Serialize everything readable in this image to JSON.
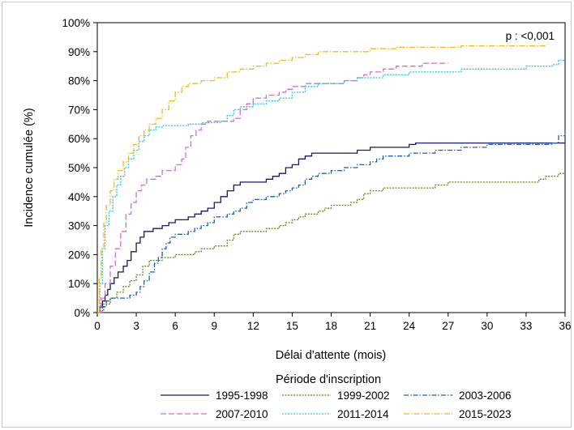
{
  "chart_data": {
    "type": "line",
    "xlabel": "Délai d'attente (mois)",
    "ylabel": "Incidence cumulée (%)",
    "annotation": "p : <0,001",
    "legend_title": "Période d'inscription",
    "xlim": [
      0,
      36
    ],
    "ylim": [
      0,
      100
    ],
    "x_ticks": [
      0,
      3,
      6,
      9,
      12,
      15,
      18,
      21,
      24,
      27,
      30,
      33,
      36
    ],
    "y_ticks": [
      0,
      10,
      20,
      30,
      40,
      50,
      60,
      70,
      80,
      90,
      100
    ],
    "y_tick_labels": [
      "0%",
      "10%",
      "20%",
      "30%",
      "40%",
      "50%",
      "60%",
      "70%",
      "80%",
      "90%",
      "100%"
    ],
    "step": true,
    "grid": false,
    "legend_position": "bottom",
    "series": [
      {
        "name": "1995-1998",
        "color": "#1a1a5e",
        "dash": "",
        "points": [
          [
            0,
            0
          ],
          [
            0.2,
            2
          ],
          [
            0.4,
            4
          ],
          [
            0.6,
            6
          ],
          [
            0.8,
            8
          ],
          [
            1,
            10
          ],
          [
            1.3,
            12
          ],
          [
            1.6,
            14
          ],
          [
            2,
            16
          ],
          [
            2.3,
            18
          ],
          [
            2.6,
            21
          ],
          [
            3,
            24
          ],
          [
            3.3,
            26
          ],
          [
            3.6,
            28
          ],
          [
            4.3,
            29
          ],
          [
            5,
            30
          ],
          [
            5.5,
            31
          ],
          [
            6,
            32
          ],
          [
            7,
            33
          ],
          [
            7.5,
            34
          ],
          [
            8,
            35
          ],
          [
            8.5,
            36
          ],
          [
            9,
            38
          ],
          [
            9.5,
            40
          ],
          [
            10,
            42
          ],
          [
            10.5,
            44
          ],
          [
            11,
            45
          ],
          [
            13,
            46
          ],
          [
            13.5,
            47
          ],
          [
            14,
            48
          ],
          [
            14.5,
            50
          ],
          [
            15,
            51
          ],
          [
            15.5,
            53
          ],
          [
            16,
            54
          ],
          [
            16.5,
            55
          ],
          [
            20,
            56
          ],
          [
            21,
            57
          ],
          [
            24,
            58
          ],
          [
            24.5,
            58.5
          ],
          [
            36,
            58.5
          ]
        ]
      },
      {
        "name": "1999-2002",
        "color": "#5b8a1e",
        "dash": "2,1.5",
        "points": [
          [
            0,
            0
          ],
          [
            0.5,
            3
          ],
          [
            1,
            5
          ],
          [
            1.5,
            7
          ],
          [
            2,
            9
          ],
          [
            2.5,
            11
          ],
          [
            3,
            13
          ],
          [
            3.5,
            16
          ],
          [
            4,
            18
          ],
          [
            5,
            19
          ],
          [
            6,
            20
          ],
          [
            7.5,
            21
          ],
          [
            8,
            22
          ],
          [
            9,
            23
          ],
          [
            10,
            25
          ],
          [
            10.5,
            27
          ],
          [
            11,
            28
          ],
          [
            13,
            29
          ],
          [
            14,
            30
          ],
          [
            14.5,
            31
          ],
          [
            15,
            32
          ],
          [
            15.5,
            33
          ],
          [
            16,
            34
          ],
          [
            17,
            35
          ],
          [
            17.5,
            36
          ],
          [
            18,
            37
          ],
          [
            19.5,
            38
          ],
          [
            20,
            39
          ],
          [
            20.5,
            41
          ],
          [
            21,
            42
          ],
          [
            22,
            43
          ],
          [
            26,
            44
          ],
          [
            27,
            45
          ],
          [
            34,
            46
          ],
          [
            34.5,
            47
          ],
          [
            35.5,
            48
          ],
          [
            36,
            48
          ]
        ]
      },
      {
        "name": "2003-2006",
        "color": "#1f5fa8",
        "dash": "6,2,1.5,2",
        "points": [
          [
            0,
            0
          ],
          [
            0.4,
            2
          ],
          [
            0.7,
            4
          ],
          [
            1,
            5
          ],
          [
            2.5,
            6
          ],
          [
            3,
            7
          ],
          [
            3.3,
            9
          ],
          [
            3.6,
            11
          ],
          [
            4,
            14
          ],
          [
            4.4,
            17
          ],
          [
            4.7,
            19
          ],
          [
            5,
            22
          ],
          [
            5.3,
            24
          ],
          [
            5.6,
            26
          ],
          [
            6,
            27
          ],
          [
            7,
            28
          ],
          [
            7.5,
            29
          ],
          [
            8,
            30
          ],
          [
            8.5,
            31
          ],
          [
            9,
            33
          ],
          [
            10,
            34
          ],
          [
            10.5,
            35
          ],
          [
            11,
            36
          ],
          [
            11.5,
            38
          ],
          [
            12,
            39
          ],
          [
            13,
            40
          ],
          [
            14,
            41
          ],
          [
            14.5,
            42
          ],
          [
            15,
            43
          ],
          [
            15.5,
            44
          ],
          [
            16,
            46
          ],
          [
            16.5,
            47
          ],
          [
            17,
            48
          ],
          [
            18,
            49
          ],
          [
            19,
            50
          ],
          [
            20,
            51
          ],
          [
            21,
            52
          ],
          [
            21.5,
            53
          ],
          [
            22,
            54
          ],
          [
            24,
            55
          ],
          [
            26,
            56
          ],
          [
            28,
            57
          ],
          [
            30,
            58
          ],
          [
            35,
            58.5
          ],
          [
            35.5,
            61
          ],
          [
            36,
            62
          ]
        ]
      },
      {
        "name": "2007-2010",
        "color": "#cf6fd1",
        "dash": "7,3",
        "points": [
          [
            0,
            0
          ],
          [
            0.3,
            5
          ],
          [
            0.6,
            10
          ],
          [
            1,
            16
          ],
          [
            1.4,
            22
          ],
          [
            1.8,
            28
          ],
          [
            2.2,
            34
          ],
          [
            2.6,
            38
          ],
          [
            3,
            42
          ],
          [
            3.4,
            44
          ],
          [
            3.8,
            46
          ],
          [
            4.5,
            47
          ],
          [
            5,
            49
          ],
          [
            6,
            51
          ],
          [
            6.5,
            53
          ],
          [
            6.8,
            57
          ],
          [
            7.2,
            61
          ],
          [
            7.6,
            63
          ],
          [
            8,
            65
          ],
          [
            8.5,
            66
          ],
          [
            10.5,
            67
          ],
          [
            11,
            70
          ],
          [
            11.5,
            72
          ],
          [
            12,
            74
          ],
          [
            13,
            75
          ],
          [
            14,
            76
          ],
          [
            14.5,
            77
          ],
          [
            15,
            78
          ],
          [
            16,
            79
          ],
          [
            19,
            80
          ],
          [
            20,
            81
          ],
          [
            20.5,
            82
          ],
          [
            21,
            83
          ],
          [
            22,
            84
          ],
          [
            23,
            85
          ],
          [
            25,
            86
          ],
          [
            27,
            86
          ]
        ]
      },
      {
        "name": "2011-2014",
        "color": "#2cc3e8",
        "dash": "2,1.5",
        "points": [
          [
            0,
            0
          ],
          [
            0.2,
            10
          ],
          [
            0.4,
            22
          ],
          [
            0.6,
            30
          ],
          [
            0.9,
            35
          ],
          [
            1.2,
            40
          ],
          [
            1.5,
            44
          ],
          [
            1.8,
            47
          ],
          [
            2.1,
            50
          ],
          [
            2.4,
            53
          ],
          [
            2.8,
            56
          ],
          [
            3.2,
            59
          ],
          [
            3.6,
            61
          ],
          [
            4,
            63
          ],
          [
            4.5,
            64
          ],
          [
            5,
            64.5
          ],
          [
            7,
            65
          ],
          [
            8,
            65.5
          ],
          [
            9.5,
            66
          ],
          [
            10,
            68
          ],
          [
            10.5,
            70
          ],
          [
            11,
            71
          ],
          [
            12,
            72
          ],
          [
            13,
            73
          ],
          [
            14,
            74
          ],
          [
            15,
            76
          ],
          [
            16,
            78
          ],
          [
            17,
            79
          ],
          [
            19,
            80
          ],
          [
            20,
            81
          ],
          [
            22,
            82
          ],
          [
            24,
            83
          ],
          [
            28,
            84
          ],
          [
            33,
            85
          ],
          [
            35,
            85.5
          ],
          [
            35.5,
            87
          ],
          [
            36,
            87
          ]
        ]
      },
      {
        "name": "2015-2023",
        "color": "#f0b82b",
        "dash": "7,2,1.5,2",
        "points": [
          [
            0,
            0
          ],
          [
            0.15,
            12
          ],
          [
            0.3,
            22
          ],
          [
            0.5,
            31
          ],
          [
            0.7,
            37
          ],
          [
            1,
            42
          ],
          [
            1.3,
            46
          ],
          [
            1.6,
            49
          ],
          [
            2,
            52
          ],
          [
            2.4,
            55
          ],
          [
            2.8,
            58
          ],
          [
            3.2,
            61
          ],
          [
            3.6,
            63
          ],
          [
            4,
            65
          ],
          [
            4.5,
            67
          ],
          [
            5,
            70
          ],
          [
            5.5,
            73
          ],
          [
            6,
            76
          ],
          [
            6.5,
            78
          ],
          [
            7,
            79
          ],
          [
            8,
            80
          ],
          [
            9,
            81
          ],
          [
            10,
            83
          ],
          [
            11,
            84
          ],
          [
            12,
            85
          ],
          [
            13,
            86
          ],
          [
            14,
            87
          ],
          [
            15,
            88
          ],
          [
            16,
            89
          ],
          [
            17,
            90
          ],
          [
            21,
            91
          ],
          [
            23,
            91.5
          ],
          [
            28,
            92
          ],
          [
            34.5,
            92
          ]
        ]
      }
    ]
  }
}
